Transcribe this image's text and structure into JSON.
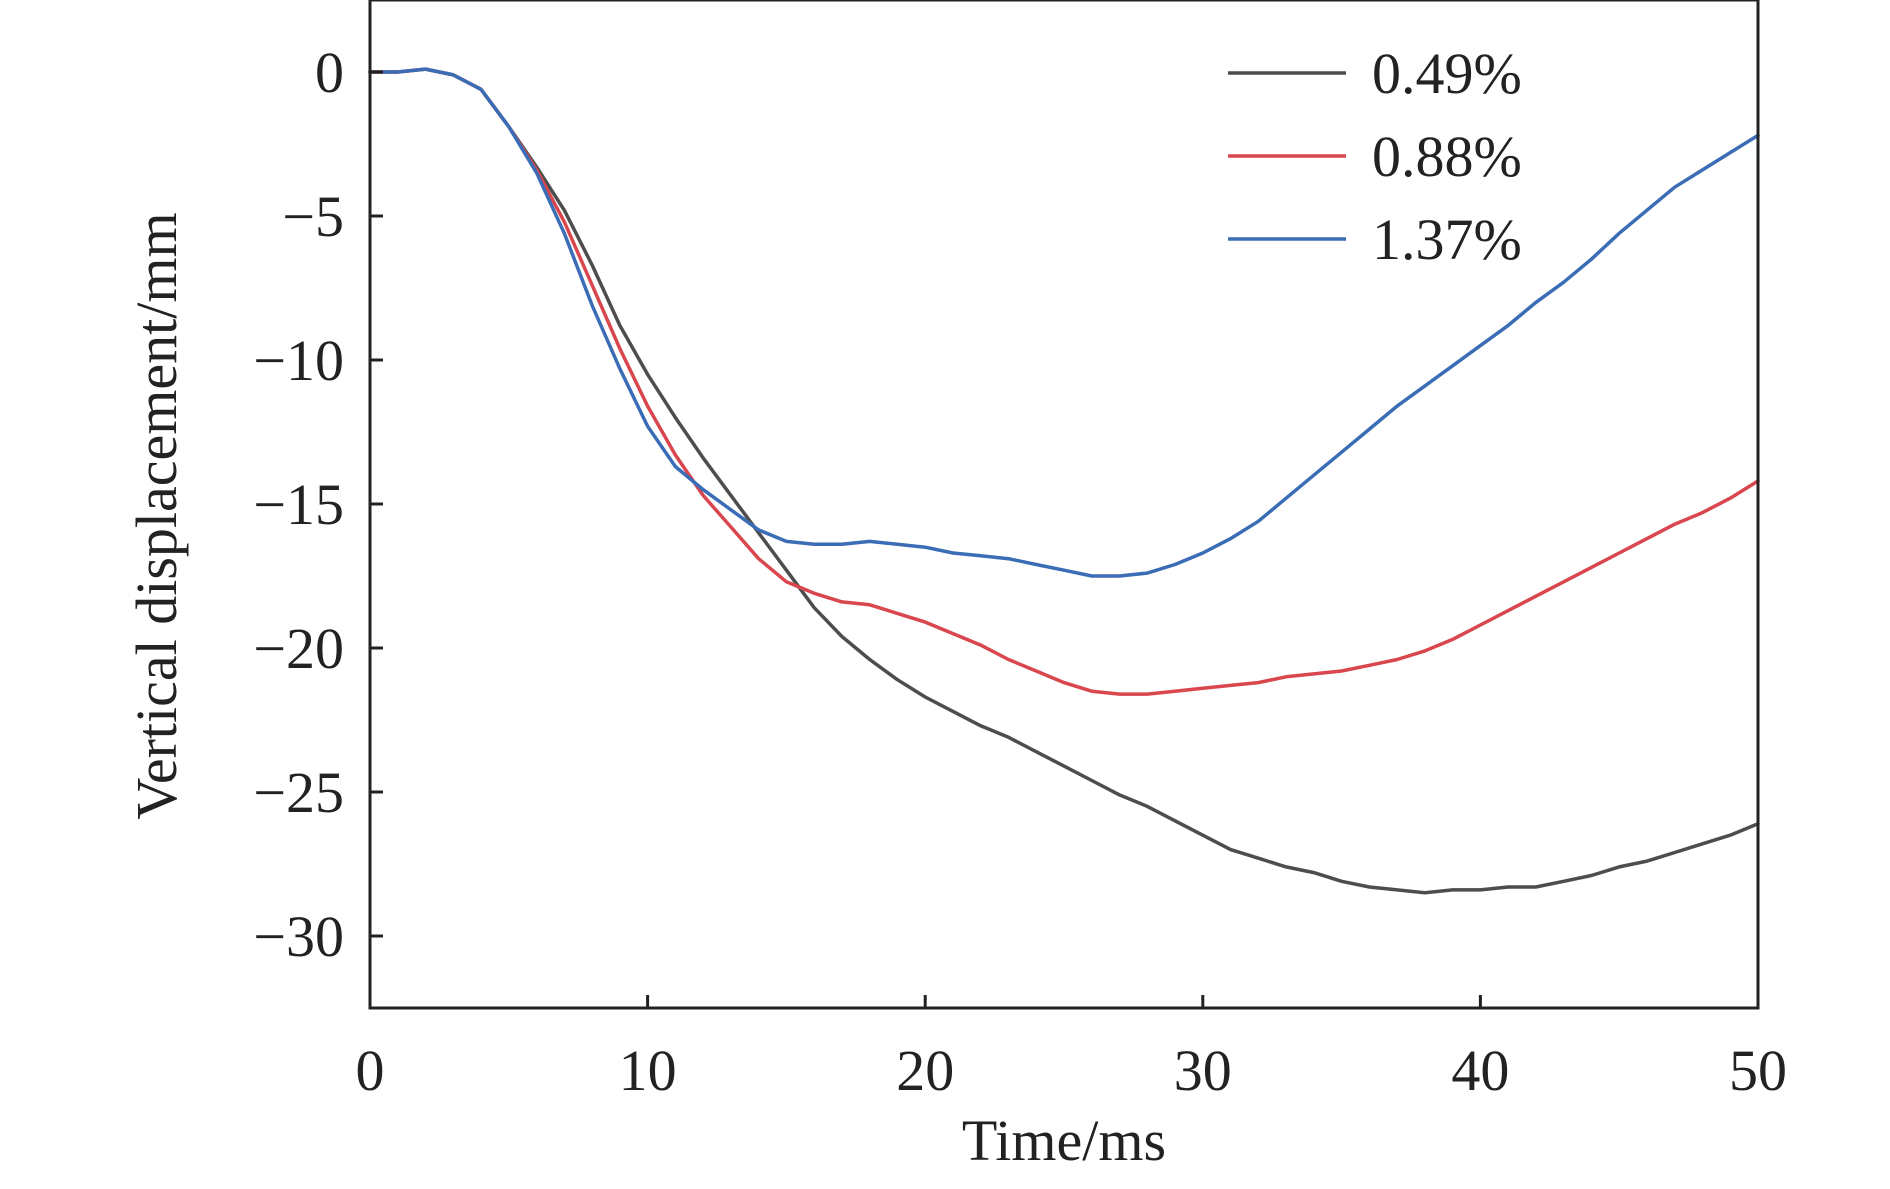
{
  "chart_data": {
    "type": "line",
    "title": "",
    "xlabel": "Time/ms",
    "ylabel": "Vertical displacement/mm",
    "xlim": [
      0,
      50
    ],
    "ylim": [
      -32.5,
      2.5
    ],
    "x_ticks": [
      0,
      10,
      20,
      30,
      40,
      50
    ],
    "x_tick_labels": [
      "0",
      "10",
      "20",
      "30",
      "40",
      "50"
    ],
    "y_ticks": [
      0,
      -5,
      -10,
      -15,
      -20,
      -25,
      -30
    ],
    "y_tick_labels": [
      "0",
      "−5",
      "−10",
      "−15",
      "−20",
      "−25",
      "−30"
    ],
    "grid": false,
    "legend_position": "top-right",
    "series": [
      {
        "name": "0.49%",
        "color": "#4d4d4d",
        "x": [
          0,
          1,
          2,
          3,
          4,
          5,
          6,
          7,
          8,
          9,
          10,
          11,
          12,
          13,
          14,
          15,
          16,
          17,
          18,
          19,
          20,
          21,
          22,
          23,
          24,
          25,
          26,
          27,
          28,
          29,
          30,
          31,
          32,
          33,
          34,
          35,
          36,
          37,
          38,
          39,
          40,
          41,
          42,
          43,
          44,
          45,
          46,
          47,
          48,
          49,
          50
        ],
        "values": [
          0,
          0,
          0.1,
          -0.1,
          -0.6,
          -1.9,
          -3.3,
          -4.8,
          -6.7,
          -8.8,
          -10.5,
          -12.0,
          -13.4,
          -14.7,
          -16.0,
          -17.3,
          -18.6,
          -19.6,
          -20.4,
          -21.1,
          -21.7,
          -22.2,
          -22.7,
          -23.1,
          -23.6,
          -24.1,
          -24.6,
          -25.1,
          -25.5,
          -26.0,
          -26.5,
          -27.0,
          -27.3,
          -27.6,
          -27.8,
          -28.1,
          -28.3,
          -28.4,
          -28.5,
          -28.4,
          -28.4,
          -28.3,
          -28.3,
          -28.1,
          -27.9,
          -27.6,
          -27.4,
          -27.1,
          -26.8,
          -26.5,
          -26.1
        ]
      },
      {
        "name": "0.88%",
        "color": "#d9464d",
        "x": [
          0,
          1,
          2,
          3,
          4,
          5,
          6,
          7,
          8,
          9,
          10,
          11,
          12,
          13,
          14,
          15,
          16,
          17,
          18,
          19,
          20,
          21,
          22,
          23,
          24,
          25,
          26,
          27,
          28,
          29,
          30,
          31,
          32,
          33,
          34,
          35,
          36,
          37,
          38,
          39,
          40,
          41,
          42,
          43,
          44,
          45,
          46,
          47,
          48,
          49,
          50
        ],
        "values": [
          0,
          0,
          0.1,
          -0.1,
          -0.6,
          -1.9,
          -3.4,
          -5.2,
          -7.4,
          -9.6,
          -11.6,
          -13.3,
          -14.7,
          -15.8,
          -16.9,
          -17.7,
          -18.1,
          -18.4,
          -18.5,
          -18.8,
          -19.1,
          -19.5,
          -19.9,
          -20.4,
          -20.8,
          -21.2,
          -21.5,
          -21.6,
          -21.6,
          -21.5,
          -21.4,
          -21.3,
          -21.2,
          -21.0,
          -20.9,
          -20.8,
          -20.6,
          -20.4,
          -20.1,
          -19.7,
          -19.2,
          -18.7,
          -18.2,
          -17.7,
          -17.2,
          -16.7,
          -16.2,
          -15.7,
          -15.3,
          -14.8,
          -14.2
        ]
      },
      {
        "name": "1.37%",
        "color": "#3a6db5",
        "x": [
          0,
          1,
          2,
          3,
          4,
          5,
          6,
          7,
          8,
          9,
          10,
          11,
          12,
          13,
          14,
          15,
          16,
          17,
          18,
          19,
          20,
          21,
          22,
          23,
          24,
          25,
          26,
          27,
          28,
          29,
          30,
          31,
          32,
          33,
          34,
          35,
          36,
          37,
          38,
          39,
          40,
          41,
          42,
          43,
          44,
          45,
          46,
          47,
          48,
          49,
          50
        ],
        "values": [
          0,
          0,
          0.1,
          -0.1,
          -0.6,
          -1.9,
          -3.5,
          -5.6,
          -8.1,
          -10.3,
          -12.3,
          -13.7,
          -14.5,
          -15.2,
          -15.9,
          -16.3,
          -16.4,
          -16.4,
          -16.3,
          -16.4,
          -16.5,
          -16.7,
          -16.8,
          -16.9,
          -17.1,
          -17.3,
          -17.5,
          -17.5,
          -17.4,
          -17.1,
          -16.7,
          -16.2,
          -15.6,
          -14.8,
          -14.0,
          -13.2,
          -12.4,
          -11.6,
          -10.9,
          -10.2,
          -9.5,
          -8.8,
          -8.0,
          -7.3,
          -6.5,
          -5.6,
          -4.8,
          -4.0,
          -3.4,
          -2.8,
          -2.2
        ]
      }
    ]
  }
}
